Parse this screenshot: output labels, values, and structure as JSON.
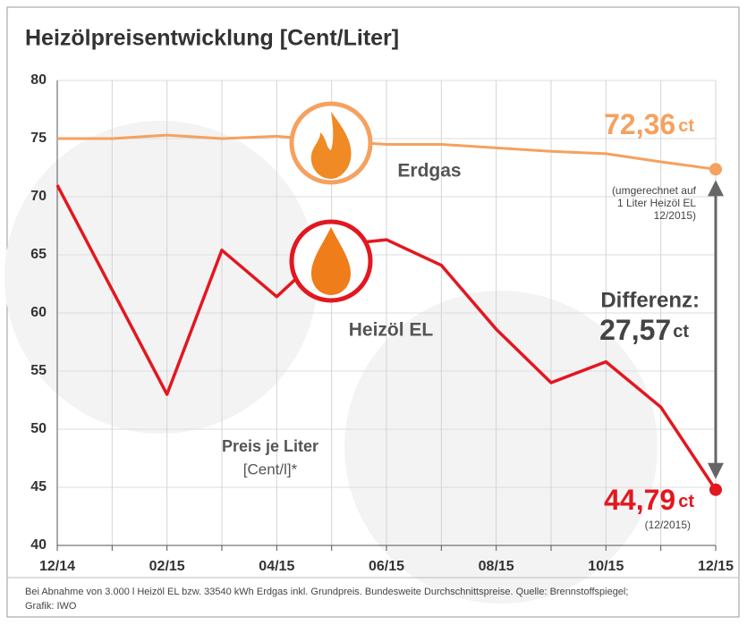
{
  "chart_data": {
    "type": "line",
    "title": "Heizölpreisentwicklung [Cent/Liter]",
    "categories": [
      "12/14",
      null,
      "02/15",
      null,
      "04/15",
      null,
      "06/15",
      null,
      "08/15",
      null,
      "10/15",
      null,
      "12/15"
    ],
    "series": [
      {
        "name": "Erdgas",
        "color": "#f5a15f",
        "values": [
          75.0,
          75.0,
          75.3,
          75.0,
          75.2,
          74.8,
          74.5,
          74.5,
          74.2,
          73.9,
          73.7,
          73.0,
          72.36
        ],
        "value_labels": [
          null,
          null,
          null,
          null,
          null,
          null,
          null,
          null,
          null,
          null,
          null,
          null,
          "72,36"
        ]
      },
      {
        "name": "Heizöl EL",
        "color": "#e3171f",
        "values": [
          71.0,
          62.0,
          53.0,
          65.4,
          61.4,
          65.8,
          66.3,
          64.1,
          58.6,
          54.0,
          55.8,
          51.9,
          44.79
        ],
        "value_labels": [
          null,
          null,
          null,
          null,
          null,
          null,
          null,
          null,
          null,
          null,
          null,
          null,
          "44,79"
        ]
      }
    ],
    "unit": "ct",
    "ylim": [
      40,
      80
    ],
    "yticks": [
      40,
      45,
      50,
      55,
      60,
      65,
      70,
      75,
      80
    ],
    "grid": true,
    "annotations": {
      "erdgas_note": [
        "(umgerechnet auf",
        "1 Liter Heizöl EL",
        "12/2015)"
      ],
      "heizoel_note": "(12/2015)",
      "difference_label": "Differenz:",
      "difference_value": "27,57",
      "axis_label": [
        "Preis je Liter",
        "[Cent/l]*"
      ]
    },
    "footnote": [
      "Bei Abnahme von 3.000 l Heizöl EL bzw. 33540 kWh Erdgas inkl. Grundpreis. Bundesweite Durchschnittspreise. Quelle: Brennstoffspiegel;",
      "Grafik: IWO"
    ]
  }
}
